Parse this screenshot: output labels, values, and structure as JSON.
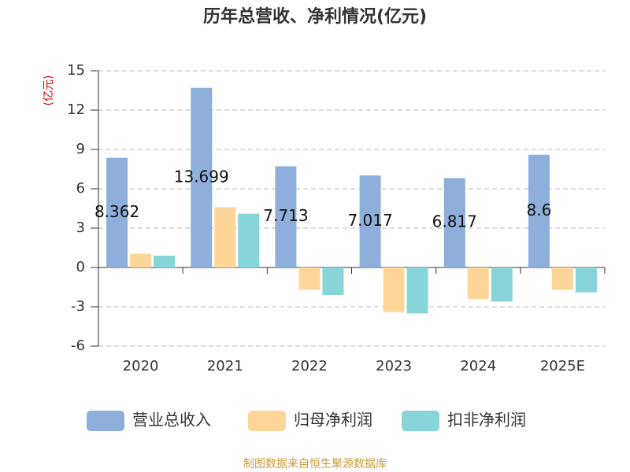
{
  "chart_data": {
    "type": "bar",
    "title": "历年总营收、净利情况(亿元)",
    "y_label": "(亿元)",
    "categories": [
      "2020",
      "2021",
      "2022",
      "2023",
      "2024",
      "2025E"
    ],
    "series": [
      {
        "name": "营业总收入",
        "color": "#8eaedb",
        "values": [
          8.362,
          13.699,
          7.713,
          7.017,
          6.817,
          8.6
        ],
        "show_labels": true
      },
      {
        "name": "归母净利润",
        "color": "#ffd699",
        "values": [
          1.05,
          4.6,
          -1.7,
          -3.4,
          -2.4,
          -1.7
        ],
        "show_labels": false
      },
      {
        "name": "扣非净利润",
        "color": "#87d5d8",
        "values": [
          0.9,
          4.1,
          -2.1,
          -3.5,
          -2.6,
          -1.9
        ],
        "show_labels": false
      }
    ],
    "ylim": [
      -6,
      15
    ],
    "yticks": [
      -6,
      -3,
      0,
      3,
      6,
      9,
      12,
      15
    ],
    "grid": true,
    "legend": "bottom",
    "source": "制图数据来自恒生聚源数据库"
  }
}
